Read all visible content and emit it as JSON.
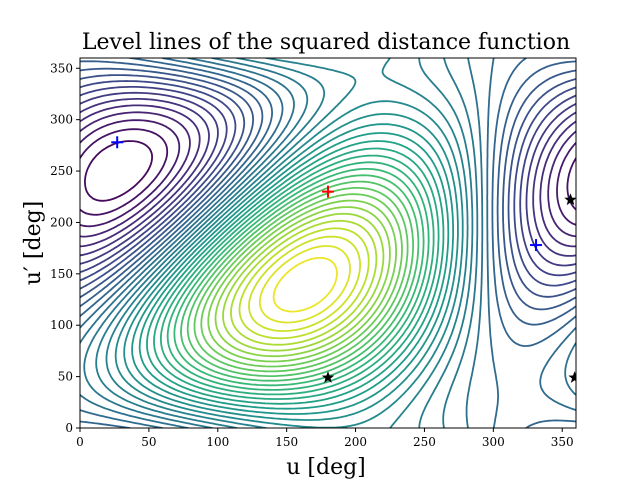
{
  "chart_data": {
    "type": "contour",
    "title": "Level lines of the squared distance function",
    "xlabel": "u [deg]",
    "ylabel": "u′ [deg]",
    "xlim": [
      0,
      360
    ],
    "ylim": [
      0,
      360
    ],
    "xticks": [
      0,
      50,
      100,
      150,
      200,
      250,
      300,
      350
    ],
    "yticks": [
      0,
      50,
      100,
      150,
      200,
      250,
      300,
      350
    ],
    "colormap": "viridis",
    "grid": false,
    "levels": 40,
    "markers": [
      {
        "u": 180,
        "u_prime": 230,
        "symbol": "+",
        "color": "#ff0000"
      },
      {
        "u": 27,
        "u_prime": 278,
        "symbol": "+",
        "color": "#0000ff"
      },
      {
        "u": 331,
        "u_prime": 178,
        "symbol": "+",
        "color": "#0000ff"
      },
      {
        "u": 180,
        "u_prime": 49,
        "symbol": "★",
        "color": "#000000"
      },
      {
        "u": 359,
        "u_prime": 49,
        "symbol": "★",
        "color": "#000000"
      },
      {
        "u": 356,
        "u_prime": 222,
        "symbol": "★",
        "color": "#000000"
      }
    ]
  }
}
